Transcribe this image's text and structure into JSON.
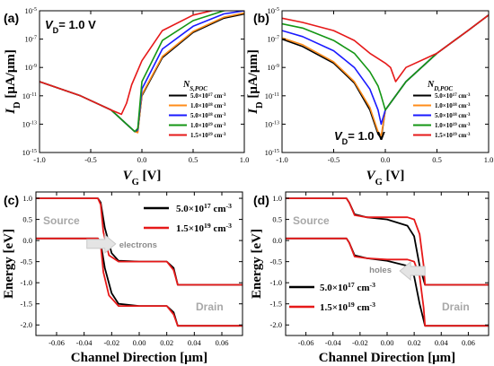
{
  "chart_data": [
    {
      "panel": "(a)",
      "type": "line",
      "condition": "V_D= 1.0 V",
      "xlabel": "V_G [V]",
      "ylabel": "I_D [μA/μm]",
      "yscale": "log",
      "xlim": [
        -1.0,
        1.0
      ],
      "ylim": [
        1e-15,
        1e-05
      ],
      "x_ticks": [
        "-1.0",
        "-0.5",
        "0.0",
        "0.5",
        "1.0"
      ],
      "y_ticks": [
        "10^-15",
        "10^-13",
        "10^-11",
        "10^-9",
        "10^-7",
        "10^-5"
      ],
      "legend_title": "N_S,POC",
      "legend_position": "right",
      "series": [
        {
          "name": "5.0×10^17 cm^-3",
          "color": "#000000",
          "x": [
            -1.0,
            -0.6,
            -0.3,
            -0.15,
            -0.07,
            -0.04,
            0.0,
            0.2,
            0.5,
            0.8,
            1.0
          ],
          "y": [
            1e-10,
            1e-11,
            1e-12,
            1e-13,
            3e-14,
            3e-14,
            1e-11,
            5e-09,
            3e-07,
            3e-06,
            6e-06
          ]
        },
        {
          "name": "1.0×10^18 cm^-3",
          "color": "#ff8c1a",
          "x": [
            -1.0,
            -0.6,
            -0.3,
            -0.15,
            -0.07,
            -0.04,
            0.0,
            0.2,
            0.5,
            0.8,
            1.0
          ],
          "y": [
            1e-10,
            1e-11,
            1e-12,
            1e-13,
            3e-14,
            2.5e-14,
            1.2e-11,
            6e-09,
            3.5e-07,
            3.5e-06,
            7e-06
          ]
        },
        {
          "name": "5.0×10^18 cm^-3",
          "color": "#1a1aff",
          "x": [
            -1.0,
            -0.6,
            -0.3,
            -0.15,
            -0.07,
            -0.04,
            0.0,
            0.2,
            0.5,
            0.8,
            1.0
          ],
          "y": [
            1e-10,
            1e-11,
            1e-12,
            1e-13,
            3e-14,
            4e-14,
            3e-11,
            2e-08,
            8e-07,
            6e-06,
            1e-05
          ]
        },
        {
          "name": "1.0×10^19 cm^-3",
          "color": "#149614",
          "x": [
            -1.0,
            -0.6,
            -0.3,
            -0.15,
            -0.07,
            -0.04,
            0.0,
            0.2,
            0.5,
            0.8,
            1.0
          ],
          "y": [
            1e-10,
            1e-11,
            1e-12,
            1e-13,
            3e-14,
            5e-14,
            1e-10,
            8e-08,
            2e-06,
            1e-05,
            1.6e-05
          ]
        },
        {
          "name": "1.5×10^19 cm^-3",
          "color": "#e61919",
          "x": [
            -1.0,
            -0.6,
            -0.3,
            -0.2,
            -0.15,
            -0.1,
            0.0,
            0.2,
            0.5,
            0.8,
            1.0
          ],
          "y": [
            1e-10,
            1e-11,
            1e-12,
            5e-13,
            3e-12,
            6e-11,
            3e-09,
            4e-07,
            5e-06,
            1.6e-05,
            2.2e-05
          ]
        }
      ]
    },
    {
      "panel": "(b)",
      "type": "line",
      "condition": "V_D= 1.0 V",
      "xlabel": "V_G [V]",
      "ylabel": "I_D [μA/μm]",
      "yscale": "log",
      "xlim": [
        -1.0,
        1.0
      ],
      "ylim": [
        1e-15,
        1e-05
      ],
      "x_ticks": [
        "-1.0",
        "-0.5",
        "0.0",
        "0.5",
        "1.0"
      ],
      "y_ticks": [
        "10^-15",
        "10^-13",
        "10^-11",
        "10^-9",
        "10^-7",
        "10^-5"
      ],
      "legend_title": "N_D,POC",
      "legend_position": "right",
      "series": [
        {
          "name": "5.0×10^17 cm^-3",
          "color": "#000000",
          "x": [
            -1.0,
            -0.8,
            -0.5,
            -0.3,
            -0.15,
            -0.07,
            -0.04,
            0.0,
            0.2,
            0.5,
            0.8,
            1.0
          ],
          "y": [
            1e-07,
            3e-08,
            2e-09,
            8e-11,
            1e-12,
            2e-14,
            1e-14,
            1e-12,
            1e-10,
            1e-08,
            4e-07,
            5e-06
          ]
        },
        {
          "name": "1.0×10^18 cm^-3",
          "color": "#ff8c1a",
          "x": [
            -1.0,
            -0.8,
            -0.5,
            -0.3,
            -0.15,
            -0.07,
            -0.04,
            0.0,
            0.2,
            0.5,
            0.8,
            1.0
          ],
          "y": [
            1.2e-07,
            4e-08,
            2.5e-09,
            1e-10,
            1.5e-12,
            3e-14,
            1.5e-14,
            1e-12,
            1e-10,
            1e-08,
            4e-07,
            5e-06
          ]
        },
        {
          "name": "5.0×10^18 cm^-3",
          "color": "#1a1aff",
          "x": [
            -1.0,
            -0.8,
            -0.5,
            -0.3,
            -0.15,
            -0.07,
            -0.04,
            0.0,
            0.2,
            0.5,
            0.8,
            1.0
          ],
          "y": [
            4e-07,
            1.5e-07,
            1.5e-08,
            1e-09,
            3e-11,
            1e-12,
            1e-13,
            1e-12,
            1e-10,
            1e-08,
            4e-07,
            5e-06
          ]
        },
        {
          "name": "1.0×10^19 cm^-3",
          "color": "#149614",
          "x": [
            -1.0,
            -0.8,
            -0.5,
            -0.3,
            -0.15,
            -0.07,
            -0.04,
            0.0,
            0.2,
            0.5,
            0.8,
            1.0
          ],
          "y": [
            1.2e-06,
            6e-07,
            8e-08,
            1e-08,
            5e-10,
            5e-11,
            1e-11,
            1e-12,
            1e-10,
            1e-08,
            4e-07,
            5e-06
          ]
        },
        {
          "name": "1.5×10^19 cm^-3",
          "color": "#e61919",
          "x": [
            -1.0,
            -0.8,
            -0.5,
            -0.3,
            -0.15,
            0.0,
            0.05,
            0.1,
            0.2,
            0.5,
            0.8,
            1.0
          ],
          "y": [
            3e-06,
            1.5e-06,
            4e-07,
            8e-08,
            1e-08,
            2e-09,
            1e-09,
            1e-10,
            1e-09,
            1e-08,
            4e-07,
            5e-06
          ]
        }
      ]
    },
    {
      "panel": "(c)",
      "type": "line",
      "xlabel": "Channel Direction [μm]",
      "ylabel": "Energy [eV]",
      "xlim": [
        -0.075,
        0.075
      ],
      "ylim": [
        -2.25,
        1.15
      ],
      "x_ticks": [
        "-0.06",
        "-0.04",
        "-0.02",
        "0.00",
        "0.02",
        "0.04",
        "0.06"
      ],
      "y_ticks": [
        "1.0",
        "0.5",
        "0.0",
        "-0.5",
        "-1.0",
        "-1.5",
        "-2.0"
      ],
      "legend_position": "top-right",
      "annotations": [
        "Source",
        "Drain",
        "electrons"
      ],
      "series": [
        {
          "name": "5.0×10^17 cm^-3",
          "color": "#000000",
          "band_upper": {
            "x": [
              -0.075,
              -0.03,
              -0.028,
              -0.025,
              -0.02,
              -0.015,
              0.0,
              0.02,
              0.025,
              0.028,
              0.075
            ],
            "y": [
              1.0,
              1.0,
              0.9,
              0.3,
              -0.3,
              -0.48,
              -0.5,
              -0.5,
              -0.65,
              -1.05,
              -1.05
            ]
          },
          "band_lower": {
            "x": [
              -0.075,
              -0.03,
              -0.028,
              -0.025,
              -0.02,
              -0.015,
              0.0,
              0.02,
              0.025,
              0.028,
              0.075
            ],
            "y": [
              0.05,
              0.05,
              -0.05,
              -0.65,
              -1.25,
              -1.5,
              -1.55,
              -1.55,
              -1.7,
              -2.02,
              -2.02
            ]
          }
        },
        {
          "name": "1.5×10^19 cm^-3",
          "color": "#e61919",
          "band_upper": {
            "x": [
              -0.075,
              -0.03,
              -0.028,
              -0.026,
              -0.022,
              -0.015,
              0.0,
              0.02,
              0.025,
              0.028,
              0.075
            ],
            "y": [
              1.0,
              1.0,
              0.85,
              0.2,
              -0.35,
              -0.5,
              -0.5,
              -0.5,
              -0.7,
              -1.05,
              -1.05
            ]
          },
          "band_lower": {
            "x": [
              -0.075,
              -0.03,
              -0.028,
              -0.026,
              -0.022,
              -0.015,
              0.0,
              0.02,
              0.025,
              0.028,
              0.075
            ],
            "y": [
              0.05,
              0.05,
              -0.1,
              -0.75,
              -1.3,
              -1.55,
              -1.55,
              -1.55,
              -1.75,
              -2.02,
              -2.02
            ]
          }
        }
      ]
    },
    {
      "panel": "(d)",
      "type": "line",
      "xlabel": "Channel Direction [μm]",
      "ylabel": "Energy [eV]",
      "xlim": [
        -0.075,
        0.075
      ],
      "ylim": [
        -2.25,
        1.15
      ],
      "x_ticks": [
        "-0.06",
        "-0.04",
        "-0.02",
        "0.00",
        "0.02",
        "0.04",
        "0.06"
      ],
      "y_ticks": [
        "1.0",
        "0.5",
        "0.0",
        "-0.5",
        "-1.0",
        "-1.5",
        "-2.0"
      ],
      "legend_position": "bottom-left",
      "annotations": [
        "Source",
        "Drain",
        "holes"
      ],
      "series": [
        {
          "name": "5.0×10^17 cm^-3",
          "color": "#000000",
          "band_upper": {
            "x": [
              -0.075,
              -0.03,
              -0.028,
              -0.024,
              -0.015,
              0.0,
              0.015,
              0.02,
              0.024,
              0.028,
              0.075
            ],
            "y": [
              1.0,
              1.0,
              0.9,
              0.62,
              0.55,
              0.5,
              0.35,
              0.1,
              -0.6,
              -1.05,
              -1.05
            ]
          },
          "band_lower": {
            "x": [
              -0.075,
              -0.03,
              -0.028,
              -0.024,
              -0.015,
              0.0,
              0.015,
              0.02,
              0.024,
              0.028,
              0.075
            ],
            "y": [
              0.05,
              0.05,
              -0.05,
              -0.35,
              -0.42,
              -0.48,
              -0.6,
              -0.85,
              -1.5,
              -2.02,
              -2.02
            ]
          }
        },
        {
          "name": "1.5×10^19 cm^-3",
          "color": "#e61919",
          "band_upper": {
            "x": [
              -0.075,
              -0.03,
              -0.028,
              -0.024,
              -0.015,
              0.0,
              0.015,
              0.02,
              0.024,
              0.027,
              0.028,
              0.075
            ],
            "y": [
              1.0,
              1.0,
              0.9,
              0.6,
              0.55,
              0.55,
              0.55,
              0.5,
              0.15,
              -0.6,
              -1.05,
              -1.05
            ]
          },
          "band_lower": {
            "x": [
              -0.075,
              -0.03,
              -0.028,
              -0.024,
              -0.015,
              0.0,
              0.015,
              0.02,
              0.024,
              0.027,
              0.028,
              0.075
            ],
            "y": [
              0.05,
              0.05,
              -0.05,
              -0.38,
              -0.42,
              -0.45,
              -0.45,
              -0.5,
              -0.85,
              -1.6,
              -2.02,
              -2.02
            ]
          }
        }
      ]
    }
  ]
}
